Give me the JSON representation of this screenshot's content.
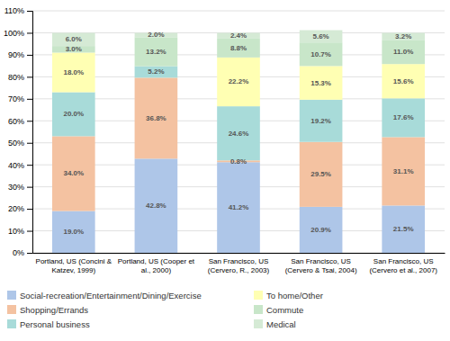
{
  "chart_data": {
    "type": "bar",
    "stacked": true,
    "data_labels": true,
    "grid": true,
    "legend": "bottom",
    "categories": [
      "Portland, US (Concini &\nKatzev, 1999)",
      "Portland, US (Cooper et\nal., 2000)",
      "San Francisco, US\n(Cervero, R., 2003)",
      "San Francisco, US\n(Cervero & Tsai, 2004)",
      "San Francisco, US\n(Cervero et al., 2007)"
    ],
    "series": [
      {
        "name": "Social-recreation/Entertainment/Dining/Exercise",
        "color": "#aec6e8",
        "values": [
          19.0,
          42.8,
          41.2,
          20.9,
          21.5
        ],
        "value_labels": [
          "19.0%",
          "42.8%",
          "41.2%",
          "20.9%",
          "21.5%"
        ]
      },
      {
        "name": "Shopping/Errands",
        "color": "#f4c2a1",
        "values": [
          34.0,
          36.8,
          0.8,
          29.5,
          31.1
        ],
        "value_labels": [
          "34.0%",
          "36.8%",
          "0.8%",
          "29.5%",
          "31.1%"
        ]
      },
      {
        "name": "Personal business",
        "color": "#a8dbd9",
        "values": [
          20.0,
          5.2,
          24.6,
          19.2,
          17.6
        ],
        "value_labels": [
          "20.0%",
          "5.2%",
          "24.6%",
          "19.2%",
          "17.6%"
        ]
      },
      {
        "name": "To home/Other",
        "color": "#ffffb3",
        "values": [
          18.0,
          0.0,
          22.2,
          15.3,
          15.6
        ],
        "value_labels": [
          "18.0%",
          null,
          "22.2%",
          "15.3%",
          "15.6%"
        ]
      },
      {
        "name": "Commute",
        "color": "#c8e6c9",
        "values": [
          3.0,
          13.2,
          8.8,
          10.7,
          11.0
        ],
        "value_labels": [
          "3.0%",
          "13.2%",
          "8.8%",
          "10.7%",
          "11.0%"
        ]
      },
      {
        "name": "Medical",
        "color": "#d5ead5",
        "values": [
          6.0,
          2.0,
          2.4,
          5.6,
          3.2
        ],
        "value_labels": [
          "6.0%",
          "2.0%",
          "2.4%",
          "5.6%",
          "3.2%"
        ]
      }
    ],
    "ylim": [
      0,
      110
    ],
    "yticks": [
      {
        "value": 0,
        "label": "0%"
      },
      {
        "value": 10,
        "label": "10%"
      },
      {
        "value": 20,
        "label": "20%"
      },
      {
        "value": 30,
        "label": "30%"
      },
      {
        "value": 40,
        "label": "40%"
      },
      {
        "value": 50,
        "label": "50%"
      },
      {
        "value": 60,
        "label": "60%"
      },
      {
        "value": 70,
        "label": "70%"
      },
      {
        "value": 80,
        "label": "80%"
      },
      {
        "value": 90,
        "label": "90%"
      },
      {
        "value": 100,
        "label": "100%"
      },
      {
        "value": 110,
        "label": "110%"
      }
    ]
  }
}
